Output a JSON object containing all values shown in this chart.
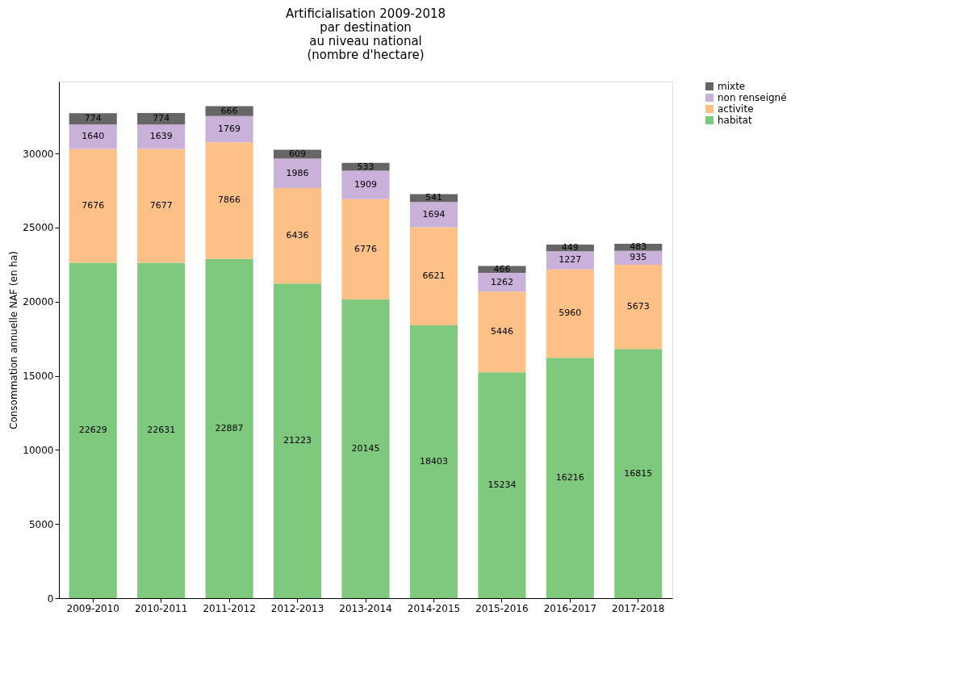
{
  "chart_data": {
    "type": "bar",
    "stacked": true,
    "title": "Artificialisation 2009-2018\npar destination\nau niveau national\n (nombre d'hectare)",
    "ylabel": "Consommation annuelle NAF (en ha)",
    "categories": [
      "2009-2010",
      "2010-2011",
      "2011-2012",
      "2012-2013",
      "2013-2014",
      "2014-2015",
      "2015-2016",
      "2016-2017",
      "2017-2018"
    ],
    "series": [
      {
        "name": "habitat",
        "color": "#7fc97f",
        "values": [
          22629,
          22631,
          22887,
          21223,
          20145,
          18403,
          15234,
          16216,
          16815
        ]
      },
      {
        "name": "activite",
        "color": "#fdc086",
        "values": [
          7676,
          7677,
          7866,
          6436,
          6776,
          6621,
          5446,
          5960,
          5673
        ]
      },
      {
        "name": "non renseigné",
        "color": "#c9b1d9",
        "values": [
          1640,
          1639,
          1769,
          1986,
          1909,
          1694,
          1262,
          1227,
          935
        ]
      },
      {
        "name": "mixte",
        "color": "#666666",
        "values": [
          774,
          774,
          666,
          609,
          533,
          541,
          466,
          449,
          483
        ]
      }
    ],
    "ylim": [
      0,
      34850
    ],
    "yticks": [
      0,
      5000,
      10000,
      15000,
      20000,
      25000,
      30000
    ],
    "grid": false,
    "legend": "top right",
    "data_labels": true
  }
}
